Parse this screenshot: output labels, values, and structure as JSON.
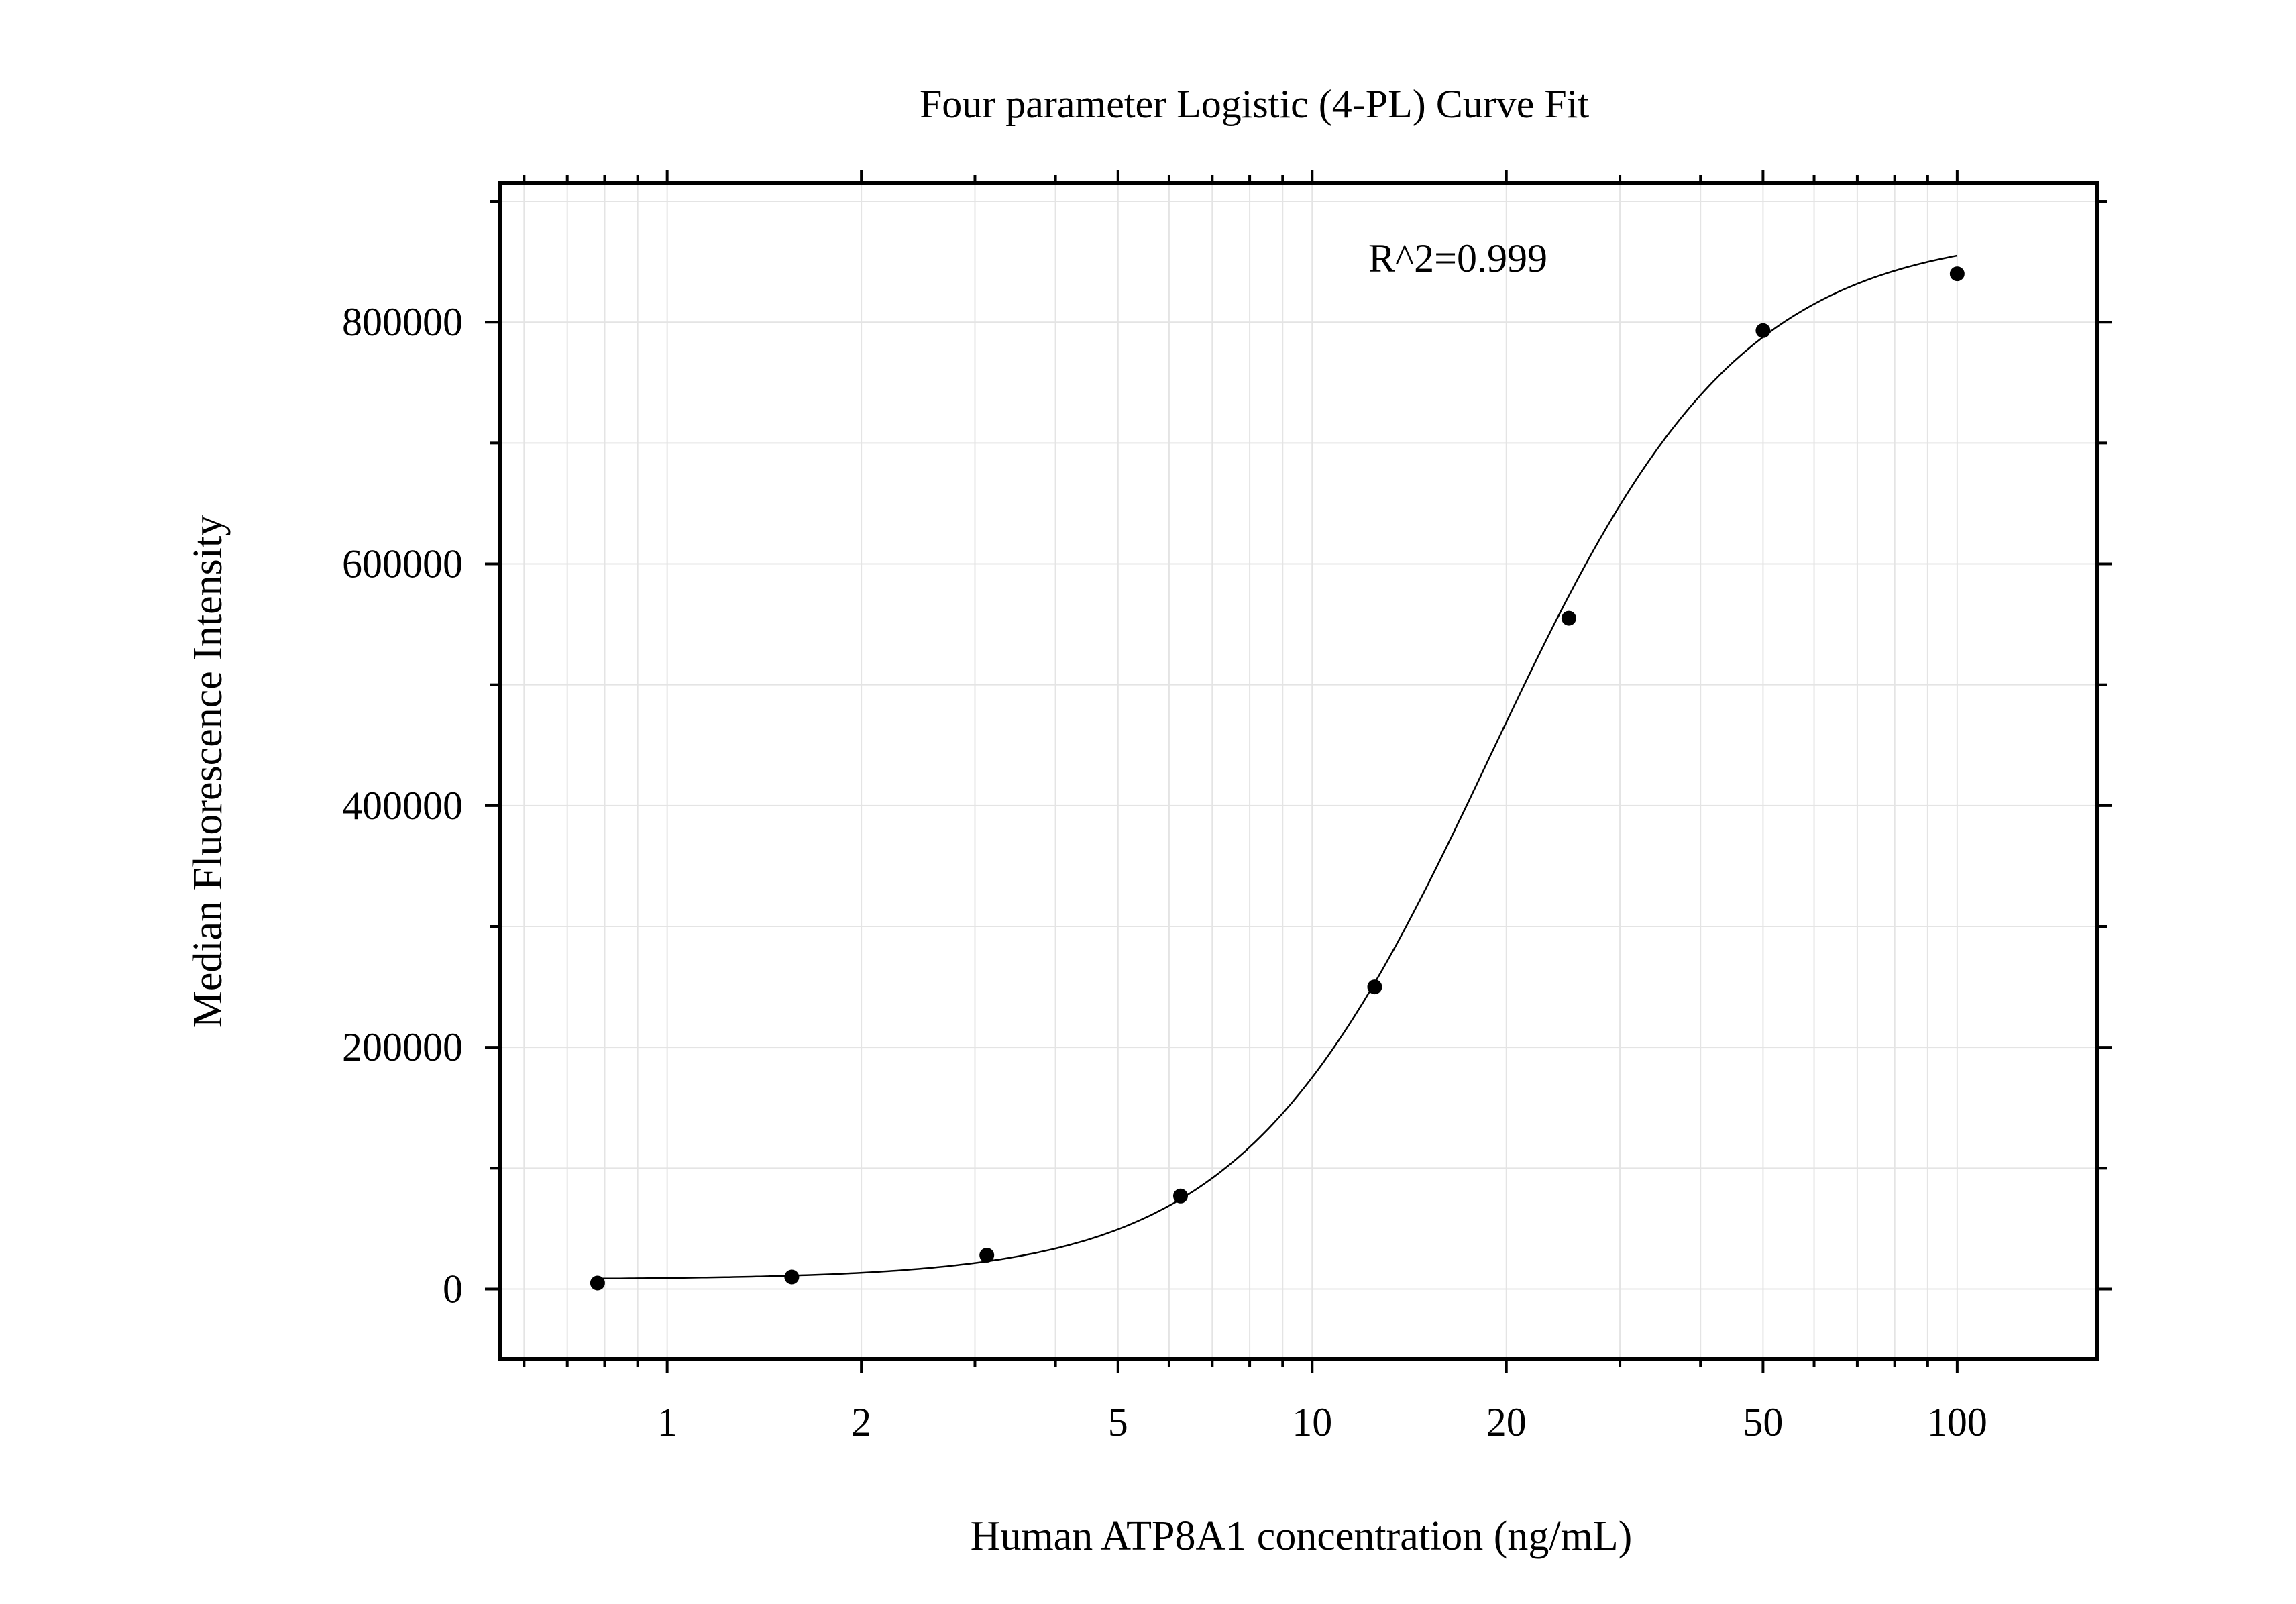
{
  "chart_data": {
    "type": "scatter",
    "title": "Four parameter Logistic (4-PL) Curve Fit",
    "xlabel": "Human ATP8A1 concentration (ng/mL)",
    "ylabel": "Median Fluorescence Intensity",
    "annotation": "R^2=0.999",
    "x_scale": "log",
    "xlim": [
      0.55,
      165
    ],
    "ylim": [
      -58000,
      915000
    ],
    "x_ticks": [
      1,
      2,
      5,
      10,
      20,
      50,
      100
    ],
    "x_tick_labels": [
      "1",
      "2",
      "5",
      "10",
      "20",
      "50",
      "100"
    ],
    "y_ticks": [
      0,
      200000,
      400000,
      600000,
      800000
    ],
    "y_tick_labels": [
      "0",
      "200000",
      "400000",
      "600000",
      "800000"
    ],
    "grid": true,
    "series": [
      {
        "points": [
          {
            "x": 0.78,
            "y": 5000
          },
          {
            "x": 1.56,
            "y": 10000
          },
          {
            "x": 3.13,
            "y": 28000
          },
          {
            "x": 6.25,
            "y": 77000
          },
          {
            "x": 12.5,
            "y": 250000
          },
          {
            "x": 25,
            "y": 555000
          },
          {
            "x": 50,
            "y": 793000
          },
          {
            "x": 100,
            "y": 840000
          }
        ],
        "fit": {
          "model": "4PL",
          "bottom": 8000,
          "top": 875000,
          "ec50": 18.9,
          "hill": 2.25,
          "x_range": [
            0.78,
            100
          ]
        }
      }
    ],
    "colors": {
      "points": "#000000",
      "curve": "#000000",
      "grid": "#e4e4e4",
      "axis": "#000000"
    }
  }
}
